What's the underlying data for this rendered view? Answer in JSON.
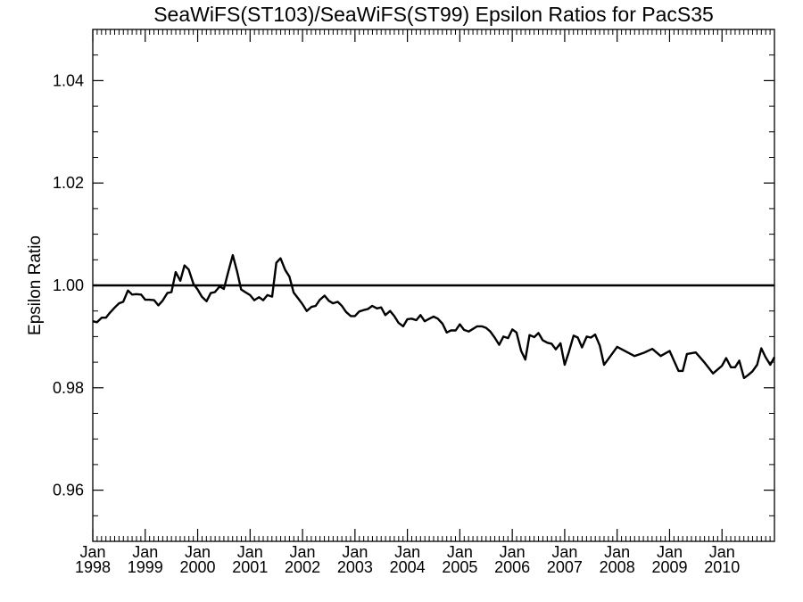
{
  "chart_data": {
    "type": "line",
    "title": "SeaWiFS(ST103)/SeaWiFS(ST99)  Epsilon Ratios for PacS35",
    "xlabel": "",
    "ylabel": "Epsilon Ratio",
    "xlim": [
      1998.0,
      2011.0
    ],
    "ylim": [
      0.95,
      1.05
    ],
    "y_ticks": [
      0.96,
      0.98,
      1.0,
      1.02,
      1.04
    ],
    "y_tick_labels": [
      "0.96",
      "0.98",
      "1.00",
      "1.02",
      "1.04"
    ],
    "x_ticks": [
      {
        "month": "Jan",
        "year": "1998",
        "x": 1998.0
      },
      {
        "month": "Jan",
        "year": "1999",
        "x": 1999.0
      },
      {
        "month": "Jan",
        "year": "2000",
        "x": 2000.0
      },
      {
        "month": "Jan",
        "year": "2001",
        "x": 2001.0
      },
      {
        "month": "Jan",
        "year": "2002",
        "x": 2002.0
      },
      {
        "month": "Jan",
        "year": "2003",
        "x": 2003.0
      },
      {
        "month": "Jan",
        "year": "2004",
        "x": 2004.0
      },
      {
        "month": "Jan",
        "year": "2005",
        "x": 2005.0
      },
      {
        "month": "Jan",
        "year": "2006",
        "x": 2006.0
      },
      {
        "month": "Jan",
        "year": "2007",
        "x": 2007.0
      },
      {
        "month": "Jan",
        "year": "2008",
        "x": 2008.0
      },
      {
        "month": "Jan",
        "year": "2009",
        "x": 2009.0
      },
      {
        "month": "Jan",
        "year": "2010",
        "x": 2010.0
      }
    ],
    "reference_line": 1.0,
    "grid": false,
    "series": [
      {
        "color": "#000000",
        "x": [
          1998.0,
          1998.08,
          1998.17,
          1998.25,
          1998.33,
          1998.42,
          1998.5,
          1998.58,
          1998.67,
          1998.75,
          1998.83,
          1998.92,
          1999.0,
          1999.08,
          1999.17,
          1999.25,
          1999.33,
          1999.42,
          1999.5,
          1999.58,
          1999.67,
          1999.75,
          1999.83,
          1999.92,
          2000.0,
          2000.08,
          2000.17,
          2000.25,
          2000.33,
          2000.42,
          2000.5,
          2000.58,
          2000.67,
          2000.75,
          2000.83,
          2000.92,
          2001.0,
          2001.08,
          2001.17,
          2001.25,
          2001.33,
          2001.42,
          2001.5,
          2001.58,
          2001.67,
          2001.75,
          2001.83,
          2001.92,
          2002.0,
          2002.08,
          2002.17,
          2002.25,
          2002.33,
          2002.42,
          2002.5,
          2002.58,
          2002.67,
          2002.75,
          2002.83,
          2002.92,
          2003.0,
          2003.08,
          2003.17,
          2003.25,
          2003.33,
          2003.42,
          2003.5,
          2003.58,
          2003.67,
          2003.75,
          2003.83,
          2003.92,
          2004.0,
          2004.08,
          2004.17,
          2004.25,
          2004.33,
          2004.42,
          2004.5,
          2004.58,
          2004.67,
          2004.75,
          2004.83,
          2004.92,
          2005.0,
          2005.08,
          2005.17,
          2005.25,
          2005.33,
          2005.42,
          2005.5,
          2005.58,
          2005.67,
          2005.75,
          2005.83,
          2005.92,
          2006.0,
          2006.08,
          2006.17,
          2006.25,
          2006.33,
          2006.42,
          2006.5,
          2006.58,
          2006.67,
          2006.75,
          2006.83,
          2006.92,
          2007.0,
          2007.08,
          2007.17,
          2007.25,
          2007.33,
          2007.42,
          2007.5,
          2007.58,
          2007.67,
          2007.75,
          2007.83,
          2008.0,
          2008.33,
          2008.5,
          2008.67,
          2008.83,
          2009.0,
          2009.17,
          2009.25,
          2009.33,
          2009.5,
          2009.67,
          2009.83,
          2010.0,
          2010.08,
          2010.17,
          2010.25,
          2010.33,
          2010.42,
          2010.5,
          2010.58,
          2010.67,
          2010.75,
          2010.83,
          2010.92,
          2011.0
        ],
        "y": [
          0.993,
          0.9928,
          0.9937,
          0.9937,
          0.9947,
          0.9957,
          0.9965,
          0.9968,
          0.999,
          0.9982,
          0.9983,
          0.9982,
          0.9972,
          0.9972,
          0.9971,
          0.9961,
          0.997,
          0.9985,
          0.9987,
          1.0026,
          1.0009,
          1.0039,
          1.0031,
          1.0003,
          0.9992,
          0.9978,
          0.9969,
          0.9985,
          0.9987,
          0.9998,
          0.9993,
          1.0025,
          1.0059,
          1.0028,
          0.9992,
          0.9986,
          0.9981,
          0.9971,
          0.9977,
          0.9971,
          0.9981,
          0.9978,
          1.0044,
          1.0053,
          1.003,
          1.0017,
          0.9986,
          0.9974,
          0.9963,
          0.995,
          0.9958,
          0.996,
          0.9972,
          0.998,
          0.997,
          0.9965,
          0.9968,
          0.996,
          0.9948,
          0.994,
          0.994,
          0.9949,
          0.9952,
          0.9954,
          0.996,
          0.9955,
          0.9957,
          0.9942,
          0.995,
          0.994,
          0.9927,
          0.992,
          0.9934,
          0.9935,
          0.9932,
          0.9942,
          0.993,
          0.9935,
          0.9939,
          0.9935,
          0.9925,
          0.9908,
          0.9912,
          0.9912,
          0.9924,
          0.9913,
          0.991,
          0.9915,
          0.992,
          0.992,
          0.9917,
          0.991,
          0.9897,
          0.9884,
          0.99,
          0.9897,
          0.9914,
          0.9908,
          0.9872,
          0.9855,
          0.9903,
          0.9899,
          0.9907,
          0.9893,
          0.9888,
          0.9886,
          0.9875,
          0.9887,
          0.9845,
          0.987,
          0.9902,
          0.9898,
          0.9879,
          0.99,
          0.9898,
          0.9904,
          0.9882,
          0.9845,
          0.9856,
          0.988,
          0.9862,
          0.9868,
          0.9876,
          0.9862,
          0.9872,
          0.9833,
          0.9833,
          0.9866,
          0.9869,
          0.9849,
          0.9828,
          0.9843,
          0.9858,
          0.984,
          0.984,
          0.9853,
          0.9819,
          0.9825,
          0.9832,
          0.9845,
          0.9877,
          0.986,
          0.9845,
          0.986
        ]
      }
    ]
  }
}
